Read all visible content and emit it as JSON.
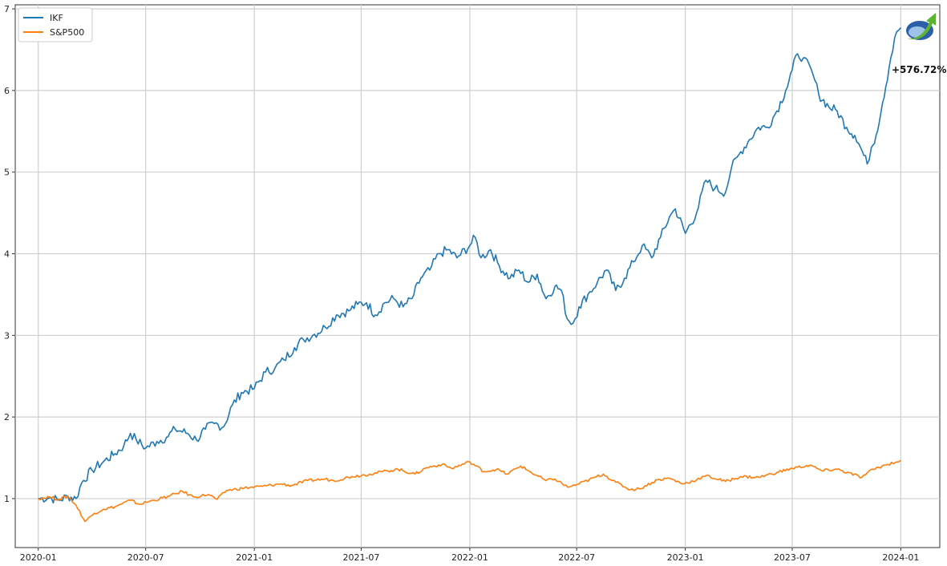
{
  "chart_data": {
    "type": "line",
    "title": "",
    "xlabel": "",
    "ylabel": "",
    "x_ticks": [
      "2020-01",
      "2020-07",
      "2021-01",
      "2021-07",
      "2022-01",
      "2022-07",
      "2023-01",
      "2023-07",
      "2024-01"
    ],
    "y_ticks": [
      1,
      2,
      3,
      4,
      5,
      6,
      7
    ],
    "xlim": [
      "2019-11-23",
      "2024-03-07"
    ],
    "ylim": [
      0.4,
      7.05
    ],
    "grid": true,
    "legend_position": "top-left",
    "annotation": "+576.72%",
    "logo": "rising-arrow-logo-icon",
    "series": [
      {
        "name": "IKF",
        "color": "#1f77b4",
        "points": [
          [
            "2020-01-01",
            1.0
          ],
          [
            "2020-01-20",
            1.01
          ],
          [
            "2020-02-05",
            0.98
          ],
          [
            "2020-02-20",
            1.03
          ],
          [
            "2020-03-05",
            1.0
          ],
          [
            "2020-03-15",
            1.2
          ],
          [
            "2020-04-01",
            1.35
          ],
          [
            "2020-04-20",
            1.45
          ],
          [
            "2020-05-10",
            1.55
          ],
          [
            "2020-05-25",
            1.65
          ],
          [
            "2020-06-05",
            1.8
          ],
          [
            "2020-06-15",
            1.72
          ],
          [
            "2020-07-01",
            1.62
          ],
          [
            "2020-07-20",
            1.7
          ],
          [
            "2020-08-05",
            1.75
          ],
          [
            "2020-08-20",
            1.85
          ],
          [
            "2020-09-10",
            1.8
          ],
          [
            "2020-09-25",
            1.72
          ],
          [
            "2020-10-10",
            1.85
          ],
          [
            "2020-10-25",
            1.92
          ],
          [
            "2020-11-10",
            1.88
          ],
          [
            "2020-11-25",
            2.15
          ],
          [
            "2020-12-10",
            2.3
          ],
          [
            "2021-01-01",
            2.35
          ],
          [
            "2021-01-20",
            2.55
          ],
          [
            "2021-02-05",
            2.6
          ],
          [
            "2021-02-20",
            2.7
          ],
          [
            "2021-03-10",
            2.85
          ],
          [
            "2021-03-25",
            2.95
          ],
          [
            "2021-04-10",
            3.0
          ],
          [
            "2021-05-01",
            3.1
          ],
          [
            "2021-05-20",
            3.25
          ],
          [
            "2021-06-10",
            3.3
          ],
          [
            "2021-06-25",
            3.38
          ],
          [
            "2021-07-10",
            3.4
          ],
          [
            "2021-07-25",
            3.25
          ],
          [
            "2021-08-10",
            3.4
          ],
          [
            "2021-08-25",
            3.45
          ],
          [
            "2021-09-10",
            3.35
          ],
          [
            "2021-09-25",
            3.45
          ],
          [
            "2021-10-10",
            3.7
          ],
          [
            "2021-10-25",
            3.8
          ],
          [
            "2021-11-10",
            4.0
          ],
          [
            "2021-11-25",
            4.05
          ],
          [
            "2021-12-10",
            3.95
          ],
          [
            "2022-01-01",
            4.1
          ],
          [
            "2022-01-10",
            4.2
          ],
          [
            "2022-01-20",
            3.95
          ],
          [
            "2022-02-05",
            4.05
          ],
          [
            "2022-02-20",
            3.85
          ],
          [
            "2022-03-10",
            3.7
          ],
          [
            "2022-03-25",
            3.8
          ],
          [
            "2022-04-10",
            3.65
          ],
          [
            "2022-04-25",
            3.75
          ],
          [
            "2022-05-10",
            3.45
          ],
          [
            "2022-05-25",
            3.6
          ],
          [
            "2022-06-05",
            3.55
          ],
          [
            "2022-06-15",
            3.2
          ],
          [
            "2022-06-25",
            3.15
          ],
          [
            "2022-07-05",
            3.35
          ],
          [
            "2022-07-20",
            3.5
          ],
          [
            "2022-08-05",
            3.65
          ],
          [
            "2022-08-20",
            3.8
          ],
          [
            "2022-09-05",
            3.55
          ],
          [
            "2022-09-20",
            3.7
          ],
          [
            "2022-10-05",
            3.9
          ],
          [
            "2022-10-20",
            4.1
          ],
          [
            "2022-11-05",
            3.95
          ],
          [
            "2022-11-20",
            4.2
          ],
          [
            "2022-12-05",
            4.45
          ],
          [
            "2022-12-15",
            4.55
          ],
          [
            "2023-01-01",
            4.25
          ],
          [
            "2023-01-20",
            4.5
          ],
          [
            "2023-02-05",
            4.9
          ],
          [
            "2023-02-20",
            4.8
          ],
          [
            "2023-03-10",
            4.75
          ],
          [
            "2023-03-20",
            5.05
          ],
          [
            "2023-04-05",
            5.25
          ],
          [
            "2023-04-20",
            5.4
          ],
          [
            "2023-05-05",
            5.55
          ],
          [
            "2023-05-20",
            5.55
          ],
          [
            "2023-06-05",
            5.75
          ],
          [
            "2023-06-20",
            6.0
          ],
          [
            "2023-07-01",
            6.25
          ],
          [
            "2023-07-10",
            6.45
          ],
          [
            "2023-07-20",
            6.4
          ],
          [
            "2023-08-05",
            6.2
          ],
          [
            "2023-08-15",
            5.95
          ],
          [
            "2023-09-01",
            5.8
          ],
          [
            "2023-09-15",
            5.75
          ],
          [
            "2023-10-01",
            5.55
          ],
          [
            "2023-10-15",
            5.45
          ],
          [
            "2023-10-25",
            5.3
          ],
          [
            "2023-11-05",
            5.1
          ],
          [
            "2023-11-12",
            5.3
          ],
          [
            "2023-11-20",
            5.45
          ],
          [
            "2023-12-01",
            5.85
          ],
          [
            "2023-12-15",
            6.4
          ],
          [
            "2023-12-25",
            6.72
          ],
          [
            "2024-01-01",
            6.77
          ]
        ]
      },
      {
        "name": "S&P500",
        "color": "#ff7f0e",
        "points": [
          [
            "2020-01-01",
            1.0
          ],
          [
            "2020-01-20",
            1.02
          ],
          [
            "2020-02-05",
            0.99
          ],
          [
            "2020-02-20",
            1.03
          ],
          [
            "2020-03-05",
            0.92
          ],
          [
            "2020-03-20",
            0.72
          ],
          [
            "2020-04-05",
            0.82
          ],
          [
            "2020-04-20",
            0.87
          ],
          [
            "2020-05-10",
            0.9
          ],
          [
            "2020-06-05",
            0.98
          ],
          [
            "2020-06-20",
            0.93
          ],
          [
            "2020-07-15",
            0.98
          ],
          [
            "2020-08-10",
            1.03
          ],
          [
            "2020-09-01",
            1.09
          ],
          [
            "2020-09-20",
            1.02
          ],
          [
            "2020-10-15",
            1.05
          ],
          [
            "2020-10-30",
            0.99
          ],
          [
            "2020-11-15",
            1.1
          ],
          [
            "2020-12-15",
            1.13
          ],
          [
            "2021-01-15",
            1.15
          ],
          [
            "2021-02-15",
            1.18
          ],
          [
            "2021-03-05",
            1.16
          ],
          [
            "2021-04-01",
            1.22
          ],
          [
            "2021-05-01",
            1.24
          ],
          [
            "2021-05-15",
            1.22
          ],
          [
            "2021-06-15",
            1.27
          ],
          [
            "2021-07-15",
            1.3
          ],
          [
            "2021-08-15",
            1.34
          ],
          [
            "2021-09-01",
            1.36
          ],
          [
            "2021-09-30",
            1.3
          ],
          [
            "2021-10-20",
            1.38
          ],
          [
            "2021-11-15",
            1.42
          ],
          [
            "2021-12-01",
            1.37
          ],
          [
            "2022-01-01",
            1.45
          ],
          [
            "2022-01-25",
            1.33
          ],
          [
            "2022-02-15",
            1.36
          ],
          [
            "2022-03-05",
            1.3
          ],
          [
            "2022-03-28",
            1.4
          ],
          [
            "2022-04-15",
            1.32
          ],
          [
            "2022-05-10",
            1.22
          ],
          [
            "2022-05-25",
            1.24
          ],
          [
            "2022-06-16",
            1.14
          ],
          [
            "2022-07-05",
            1.18
          ],
          [
            "2022-08-15",
            1.3
          ],
          [
            "2022-09-05",
            1.2
          ],
          [
            "2022-09-30",
            1.11
          ],
          [
            "2022-10-15",
            1.12
          ],
          [
            "2022-11-15",
            1.23
          ],
          [
            "2022-12-05",
            1.25
          ],
          [
            "2022-12-28",
            1.18
          ],
          [
            "2023-01-20",
            1.23
          ],
          [
            "2023-02-05",
            1.28
          ],
          [
            "2023-03-10",
            1.21
          ],
          [
            "2023-04-05",
            1.27
          ],
          [
            "2023-05-05",
            1.26
          ],
          [
            "2023-06-05",
            1.32
          ],
          [
            "2023-07-01",
            1.37
          ],
          [
            "2023-07-31",
            1.41
          ],
          [
            "2023-08-20",
            1.34
          ],
          [
            "2023-09-15",
            1.36
          ],
          [
            "2023-10-27",
            1.26
          ],
          [
            "2023-11-15",
            1.36
          ],
          [
            "2023-12-10",
            1.42
          ],
          [
            "2024-01-01",
            1.47
          ]
        ]
      }
    ]
  }
}
